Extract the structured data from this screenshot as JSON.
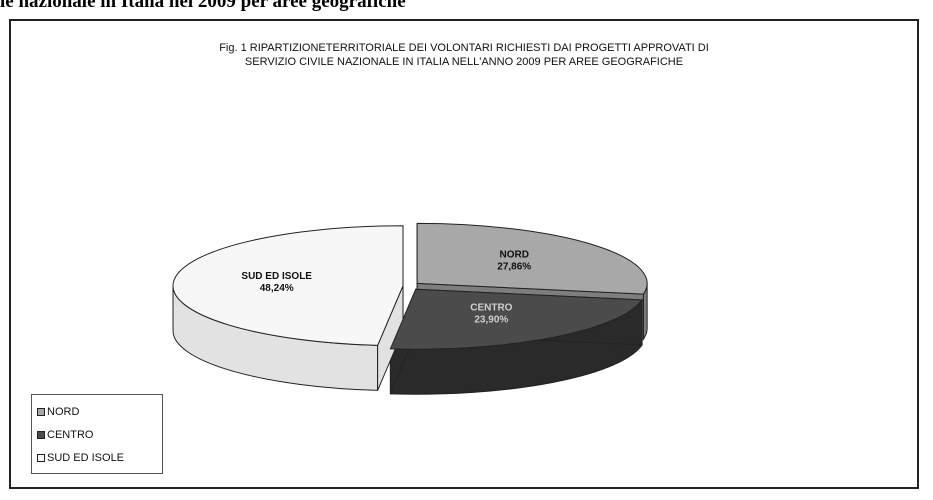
{
  "page": {
    "heading": "le nazionale in Italia nel 2009 per aree geografiche"
  },
  "chart_data": {
    "type": "pie",
    "style": "3d-exploded",
    "title": [
      "Fig. 1  RIPARTIZIONETERRITORIALE DEI VOLONTARI  RICHIESTI DAI PROGETTI APPROVATI DI",
      "SERVIZIO CIVILE NAZIONALE IN ITALIA NELL'ANNO 2009 PER AREE GEOGRAFICHE"
    ],
    "slices": [
      {
        "name": "NORD",
        "value": 27.86,
        "label": "27,86%",
        "color": "#a8a8a8",
        "side_color": "#7e7e7e"
      },
      {
        "name": "CENTRO",
        "value": 23.9,
        "label": "23,90%",
        "color": "#4b4b4b",
        "side_color": "#2a2a2a"
      },
      {
        "name": "SUD ED ISOLE",
        "value": 48.24,
        "label": "48,24%",
        "color": "#f7f7f7",
        "side_color": "#e2e2e2"
      }
    ],
    "legend": {
      "position": "bottom-left",
      "items": [
        "NORD",
        "CENTRO",
        "SUD ED ISOLE"
      ]
    }
  }
}
